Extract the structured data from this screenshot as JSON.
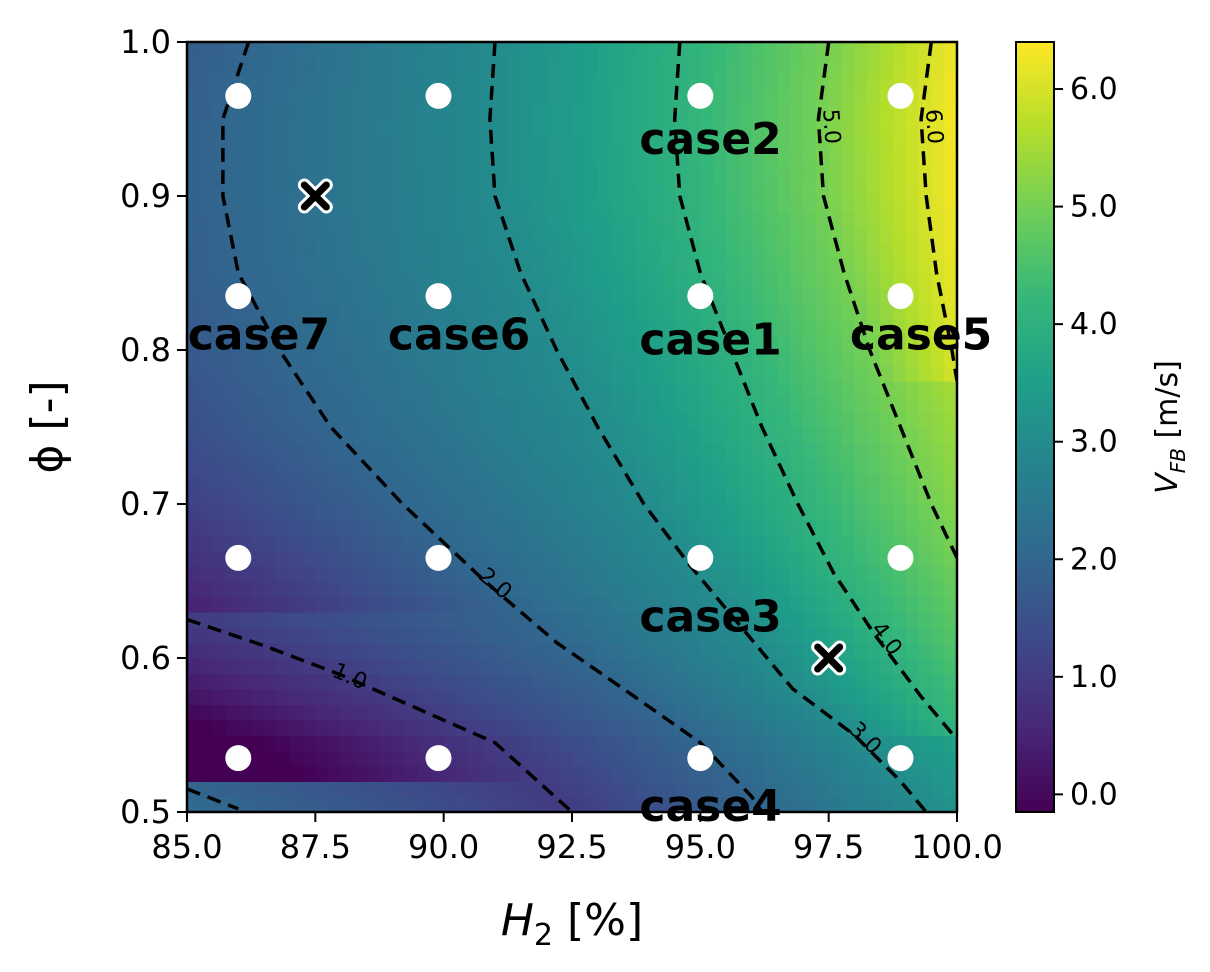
{
  "chart_data": {
    "type": "heatmap",
    "title": "",
    "xlabel": "H",
    "xlabel_subscript": "2",
    "xlabel_unit": " [%]",
    "ylabel": "ϕ [-]",
    "xlim": [
      85.0,
      100.0
    ],
    "ylim": [
      0.5,
      1.0
    ],
    "x_ticks": [
      "85.0",
      "87.5",
      "90.0",
      "92.5",
      "95.0",
      "97.5",
      "100.0"
    ],
    "y_ticks": [
      "0.5",
      "0.6",
      "0.7",
      "0.8",
      "0.9",
      "1.0"
    ],
    "colorbar": {
      "label": "V",
      "label_subscript": "FB",
      "label_unit": " [m/s]",
      "range": [
        -0.15,
        6.4
      ],
      "ticks": [
        "0.0",
        "1.0",
        "2.0",
        "3.0",
        "4.0",
        "5.0",
        "6.0"
      ],
      "colormap": [
        "#440154",
        "#482878",
        "#3e4989",
        "#31688e",
        "#26828e",
        "#1f9e89",
        "#35b779",
        "#6ece58",
        "#b5de2b",
        "#fde725"
      ]
    },
    "contours": [
      {
        "level": "1.0",
        "points": [
          [
            85.0,
            0.625
          ],
          [
            86.5,
            0.608
          ],
          [
            88.0,
            0.589
          ],
          [
            89.5,
            0.567
          ],
          [
            91.0,
            0.545
          ],
          [
            92.5,
            0.5
          ]
        ]
      },
      {
        "level": "2.0",
        "points": [
          [
            85.0,
            0.515
          ],
          [
            86.0,
            0.502
          ]
        ]
      },
      {
        "level": "2.0",
        "points": [
          [
            86.2,
            1.0
          ],
          [
            85.7,
            0.95
          ],
          [
            85.7,
            0.9
          ],
          [
            86.0,
            0.85
          ],
          [
            86.8,
            0.8
          ],
          [
            87.8,
            0.75
          ],
          [
            89.2,
            0.7
          ],
          [
            90.8,
            0.65
          ],
          [
            92.2,
            0.61
          ],
          [
            93.5,
            0.58
          ],
          [
            95.0,
            0.545
          ],
          [
            96.0,
            0.51
          ],
          [
            96.2,
            0.5
          ]
        ]
      },
      {
        "level": "3.0",
        "points": [
          [
            91.0,
            1.0
          ],
          [
            90.9,
            0.95
          ],
          [
            91.0,
            0.9
          ],
          [
            91.5,
            0.85
          ],
          [
            92.2,
            0.8
          ],
          [
            93.0,
            0.75
          ],
          [
            93.9,
            0.7
          ],
          [
            94.8,
            0.66
          ],
          [
            95.8,
            0.62
          ],
          [
            96.8,
            0.58
          ],
          [
            98.0,
            0.55
          ],
          [
            98.9,
            0.52
          ],
          [
            99.4,
            0.5
          ]
        ]
      },
      {
        "level": "4.0",
        "points": [
          [
            94.6,
            1.0
          ],
          [
            94.5,
            0.95
          ],
          [
            94.6,
            0.9
          ],
          [
            95.0,
            0.85
          ],
          [
            95.6,
            0.8
          ],
          [
            96.2,
            0.75
          ],
          [
            96.9,
            0.7
          ],
          [
            97.6,
            0.655
          ],
          [
            98.4,
            0.615
          ],
          [
            99.3,
            0.575
          ],
          [
            100.0,
            0.547
          ]
        ]
      },
      {
        "level": "5.0",
        "points": [
          [
            97.5,
            1.0
          ],
          [
            97.3,
            0.95
          ],
          [
            97.4,
            0.9
          ],
          [
            97.8,
            0.85
          ],
          [
            98.3,
            0.8
          ],
          [
            98.9,
            0.75
          ],
          [
            99.5,
            0.7
          ],
          [
            100.0,
            0.665
          ]
        ]
      },
      {
        "level": "6.0",
        "points": [
          [
            99.5,
            1.0
          ],
          [
            99.3,
            0.95
          ],
          [
            99.4,
            0.9
          ],
          [
            99.6,
            0.85
          ],
          [
            99.9,
            0.8
          ],
          [
            100.0,
            0.78
          ]
        ]
      }
    ],
    "sample_points": [
      [
        86.0,
        0.965
      ],
      [
        89.9,
        0.965
      ],
      [
        95.0,
        0.965
      ],
      [
        98.9,
        0.965
      ],
      [
        86.0,
        0.835
      ],
      [
        89.9,
        0.835
      ],
      [
        95.0,
        0.835
      ],
      [
        98.9,
        0.835
      ],
      [
        86.0,
        0.665
      ],
      [
        89.9,
        0.665
      ],
      [
        95.0,
        0.665
      ],
      [
        98.9,
        0.665
      ],
      [
        86.0,
        0.535
      ],
      [
        89.9,
        0.535
      ],
      [
        95.0,
        0.535
      ],
      [
        98.9,
        0.535
      ]
    ],
    "cross_points": [
      [
        87.5,
        0.9
      ],
      [
        97.5,
        0.6
      ]
    ],
    "case_labels": [
      {
        "text": "case2",
        "x": 95.2,
        "y": 0.935
      },
      {
        "text": "case7",
        "x": 86.4,
        "y": 0.808
      },
      {
        "text": "case6",
        "x": 90.3,
        "y": 0.808
      },
      {
        "text": "case1",
        "x": 95.2,
        "y": 0.805
      },
      {
        "text": "case5",
        "x": 99.3,
        "y": 0.808
      },
      {
        "text": "case3",
        "x": 95.2,
        "y": 0.625
      },
      {
        "text": "case4",
        "x": 95.2,
        "y": 0.502
      }
    ]
  }
}
